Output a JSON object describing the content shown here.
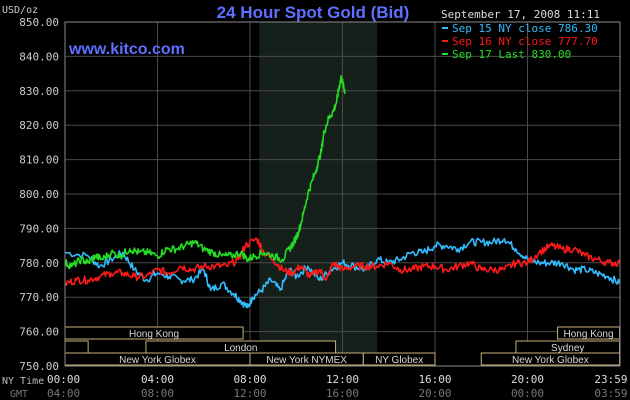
{
  "chart_data": {
    "type": "line",
    "title": "24 Hour Spot Gold (Bid)",
    "website": "www.kitco.com",
    "ylabel": "USD/oz",
    "date_label": "September 17, 2008 11:11",
    "ylim": [
      750,
      850
    ],
    "y_ticks": [
      "850.00",
      "840.00",
      "830.00",
      "820.00",
      "810.00",
      "800.00",
      "790.00",
      "780.00",
      "770.00",
      "760.00",
      "750.00"
    ],
    "x_row_labels": {
      "ny": "NY Time",
      "gmt": "GMT"
    },
    "x_ticks_ny": [
      "00:00",
      "04:00",
      "08:00",
      "12:00",
      "16:00",
      "20:00",
      "23:59"
    ],
    "x_ticks_gmt": [
      "04:00",
      "08:00",
      "12:00",
      "16:00",
      "20:00",
      "00:00",
      "03:59"
    ],
    "highlight_range_hours": [
      8.4,
      13.5
    ],
    "legend": {
      "position": "top-right"
    },
    "series": [
      {
        "name": "Sep 15 NY close 786.30",
        "color": "#33bbff",
        "points": [
          [
            0,
            783
          ],
          [
            1,
            782
          ],
          [
            1.5,
            779
          ],
          [
            2,
            781
          ],
          [
            2.5,
            783
          ],
          [
            3,
            778
          ],
          [
            3.5,
            775
          ],
          [
            4,
            777
          ],
          [
            4.5,
            776
          ],
          [
            5,
            775
          ],
          [
            5.5,
            775
          ],
          [
            6,
            778
          ],
          [
            6.3,
            772
          ],
          [
            6.8,
            774
          ],
          [
            7.3,
            771
          ],
          [
            7.6,
            769
          ],
          [
            7.9,
            767
          ],
          [
            8.1,
            770
          ],
          [
            8.5,
            772
          ],
          [
            8.9,
            775
          ],
          [
            9.3,
            772
          ],
          [
            9.7,
            778
          ],
          [
            10,
            776
          ],
          [
            10.5,
            779
          ],
          [
            11,
            775
          ],
          [
            11.5,
            778
          ],
          [
            12,
            780
          ],
          [
            12.5,
            779
          ],
          [
            13,
            778
          ],
          [
            13.5,
            781
          ],
          [
            14,
            780
          ],
          [
            14.5,
            781
          ],
          [
            15,
            783
          ],
          [
            15.5,
            783
          ],
          [
            16,
            785
          ],
          [
            16.5,
            785
          ],
          [
            17,
            784
          ],
          [
            17.5,
            786
          ],
          [
            18,
            786
          ],
          [
            18.5,
            786
          ],
          [
            19,
            787
          ],
          [
            19.5,
            784
          ],
          [
            20,
            781
          ],
          [
            20.5,
            780
          ],
          [
            21,
            780
          ],
          [
            21.5,
            780
          ],
          [
            22,
            778
          ],
          [
            22.5,
            778
          ],
          [
            23,
            777
          ],
          [
            23.5,
            776
          ],
          [
            23.98,
            774
          ]
        ]
      },
      {
        "name": "Sep 16 NY close 777.70",
        "color": "#ff1a1a",
        "points": [
          [
            0,
            774
          ],
          [
            0.5,
            775
          ],
          [
            1,
            775
          ],
          [
            1.5,
            776
          ],
          [
            2,
            777
          ],
          [
            2.5,
            777
          ],
          [
            3,
            776
          ],
          [
            3.5,
            776
          ],
          [
            4,
            778
          ],
          [
            4.5,
            777
          ],
          [
            5,
            779
          ],
          [
            5.5,
            778
          ],
          [
            6,
            779
          ],
          [
            6.5,
            779
          ],
          [
            7,
            779
          ],
          [
            7.5,
            781
          ],
          [
            7.8,
            785
          ],
          [
            8.3,
            787
          ],
          [
            8.6,
            783
          ],
          [
            9,
            781
          ],
          [
            9.4,
            778
          ],
          [
            9.8,
            777
          ],
          [
            10.2,
            779
          ],
          [
            10.6,
            776
          ],
          [
            11,
            778
          ],
          [
            11.3,
            775
          ],
          [
            11.6,
            780
          ],
          [
            12,
            778
          ],
          [
            12.5,
            779
          ],
          [
            13,
            779
          ],
          [
            13.5,
            779
          ],
          [
            14,
            780
          ],
          [
            14.5,
            778
          ],
          [
            15,
            778
          ],
          [
            15.5,
            779
          ],
          [
            16,
            779
          ],
          [
            16.5,
            778
          ],
          [
            17,
            779
          ],
          [
            17.5,
            780
          ],
          [
            18,
            778
          ],
          [
            18.5,
            778
          ],
          [
            19,
            778
          ],
          [
            19.5,
            780
          ],
          [
            20,
            780
          ],
          [
            20.5,
            783
          ],
          [
            21,
            785
          ],
          [
            21.5,
            784
          ],
          [
            22,
            784
          ],
          [
            22.5,
            782
          ],
          [
            23,
            781
          ],
          [
            23.5,
            780
          ],
          [
            23.98,
            780
          ]
        ]
      },
      {
        "name": "Sep 17 Last 830.00",
        "color": "#22dd22",
        "points": [
          [
            0,
            780
          ],
          [
            0.3,
            779
          ],
          [
            0.7,
            781
          ],
          [
            1,
            780
          ],
          [
            1.3,
            782
          ],
          [
            1.6,
            781
          ],
          [
            2,
            783
          ],
          [
            2.4,
            782
          ],
          [
            2.8,
            784
          ],
          [
            3.2,
            783
          ],
          [
            3.6,
            783
          ],
          [
            4,
            782
          ],
          [
            4.4,
            784
          ],
          [
            4.8,
            784
          ],
          [
            5.2,
            785
          ],
          [
            5.6,
            786
          ],
          [
            6,
            784
          ],
          [
            6.4,
            783
          ],
          [
            6.8,
            782
          ],
          [
            7.2,
            782
          ],
          [
            7.6,
            783
          ],
          [
            7.9,
            781
          ],
          [
            8.2,
            782
          ],
          [
            8.6,
            783
          ],
          [
            9,
            782
          ],
          [
            9.4,
            781
          ],
          [
            9.7,
            784
          ],
          [
            9.9,
            786
          ],
          [
            10.1,
            789
          ],
          [
            10.3,
            794
          ],
          [
            10.5,
            800
          ],
          [
            10.7,
            804
          ],
          [
            10.9,
            808
          ],
          [
            11.1,
            813
          ],
          [
            11.2,
            818
          ],
          [
            11.4,
            822
          ],
          [
            11.6,
            824
          ],
          [
            11.75,
            827
          ],
          [
            11.85,
            831
          ],
          [
            11.95,
            834
          ],
          [
            12.05,
            831
          ],
          [
            12.1,
            830
          ]
        ]
      }
    ],
    "session_rows": [
      [
        {
          "label": "Hong Kong",
          "start": 0,
          "end": 7.7
        },
        {
          "label": "Hong Kong",
          "start": 21.3,
          "end": 23.98
        }
      ],
      [
        {
          "label": "",
          "start": 0,
          "end": 1
        },
        {
          "label": "London",
          "start": 3.5,
          "end": 11.7
        },
        {
          "label": "Sydney",
          "start": 19.5,
          "end": 23.98
        }
      ],
      [
        {
          "label": "New York Globex",
          "start": 0,
          "end": 8
        },
        {
          "label": "New York NYMEX",
          "start": 8,
          "end": 12.9
        },
        {
          "label": "NY Globex",
          "start": 12.9,
          "end": 16
        },
        {
          "label": "New York Globex",
          "start": 18,
          "end": 23.98
        }
      ]
    ]
  }
}
